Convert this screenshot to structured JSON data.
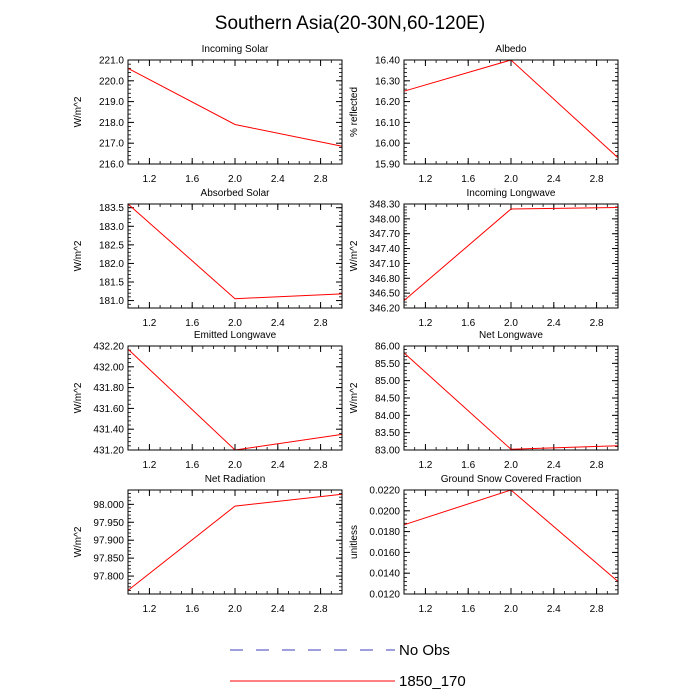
{
  "page": {
    "title": "Southern Asia(20-30N,60-120E)"
  },
  "legend": {
    "entries": [
      {
        "label": "No Obs",
        "color": "#3f3fbf",
        "style": "dashed"
      },
      {
        "label": "1850_170",
        "color": "#ff0000",
        "style": "solid"
      }
    ]
  },
  "chart_data": [
    {
      "type": "line",
      "title": "Incoming Solar",
      "ylabel": "W/m^2",
      "xlim": [
        1.0,
        3.0
      ],
      "ylim": [
        216.0,
        221.0
      ],
      "xticks": [
        "1.2",
        "1.6",
        "2.0",
        "2.4",
        "2.8"
      ],
      "yticks": [
        "216.0",
        "217.0",
        "218.0",
        "219.0",
        "220.0",
        "221.0"
      ],
      "series": [
        {
          "name": "1850_170",
          "color": "#ff0000",
          "x": [
            1,
            2,
            3
          ],
          "y": [
            220.6,
            217.9,
            216.85
          ]
        }
      ]
    },
    {
      "type": "line",
      "title": "Albedo",
      "ylabel": "% reflected",
      "xlim": [
        1.0,
        3.0
      ],
      "ylim": [
        15.9,
        16.4
      ],
      "xticks": [
        "1.2",
        "1.6",
        "2.0",
        "2.4",
        "2.8"
      ],
      "yticks": [
        "15.90",
        "16.00",
        "16.10",
        "16.20",
        "16.30",
        "16.40"
      ],
      "series": [
        {
          "name": "1850_170",
          "color": "#ff0000",
          "x": [
            1,
            2,
            3
          ],
          "y": [
            16.25,
            16.4,
            15.93
          ]
        }
      ]
    },
    {
      "type": "line",
      "title": "Absorbed Solar",
      "ylabel": "W/m^2",
      "xlim": [
        1.0,
        3.0
      ],
      "ylim": [
        180.8,
        183.6
      ],
      "xticks": [
        "1.2",
        "1.6",
        "2.0",
        "2.4",
        "2.8"
      ],
      "yticks": [
        "181.0",
        "181.5",
        "182.0",
        "182.5",
        "183.0",
        "183.5"
      ],
      "series": [
        {
          "name": "1850_170",
          "color": "#ff0000",
          "x": [
            1,
            2,
            3
          ],
          "y": [
            183.6,
            181.05,
            181.18
          ]
        }
      ]
    },
    {
      "type": "line",
      "title": "Incoming Longwave",
      "ylabel": "W/m^2",
      "xlim": [
        1.0,
        3.0
      ],
      "ylim": [
        346.2,
        348.3
      ],
      "xticks": [
        "1.2",
        "1.6",
        "2.0",
        "2.4",
        "2.8"
      ],
      "yticks": [
        "346.20",
        "346.50",
        "346.80",
        "347.10",
        "347.40",
        "347.70",
        "348.00",
        "348.30"
      ],
      "series": [
        {
          "name": "1850_170",
          "color": "#ff0000",
          "x": [
            1,
            2,
            3
          ],
          "y": [
            346.35,
            348.2,
            348.23
          ]
        }
      ]
    },
    {
      "type": "line",
      "title": "Emitted Longwave",
      "ylabel": "W/m^2",
      "xlim": [
        1.0,
        3.0
      ],
      "ylim": [
        431.2,
        432.2
      ],
      "xticks": [
        "1.2",
        "1.6",
        "2.0",
        "2.4",
        "2.8"
      ],
      "yticks": [
        "431.20",
        "431.40",
        "431.60",
        "431.80",
        "432.00",
        "432.20"
      ],
      "series": [
        {
          "name": "1850_170",
          "color": "#ff0000",
          "x": [
            1,
            2,
            3
          ],
          "y": [
            432.17,
            431.2,
            431.35
          ]
        }
      ]
    },
    {
      "type": "line",
      "title": "Net Longwave",
      "ylabel": "W/m^2",
      "xlim": [
        1.0,
        3.0
      ],
      "ylim": [
        83.0,
        86.0
      ],
      "xticks": [
        "1.2",
        "1.6",
        "2.0",
        "2.4",
        "2.8"
      ],
      "yticks": [
        "83.00",
        "83.50",
        "84.00",
        "84.50",
        "85.00",
        "85.50",
        "86.00"
      ],
      "series": [
        {
          "name": "1850_170",
          "color": "#ff0000",
          "x": [
            1,
            2,
            3
          ],
          "y": [
            85.8,
            83.02,
            83.12
          ]
        }
      ]
    },
    {
      "type": "line",
      "title": "Net Radiation",
      "ylabel": "W/m^2",
      "xlim": [
        1.0,
        3.0
      ],
      "ylim": [
        97.75,
        98.04
      ],
      "xticks": [
        "1.2",
        "1.6",
        "2.0",
        "2.4",
        "2.8"
      ],
      "yticks": [
        "97.800",
        "97.850",
        "97.900",
        "97.950",
        "98.000"
      ],
      "series": [
        {
          "name": "1850_170",
          "color": "#ff0000",
          "x": [
            1,
            2,
            3
          ],
          "y": [
            97.76,
            97.995,
            98.028
          ]
        }
      ]
    },
    {
      "type": "line",
      "title": "Ground Snow Covered Fraction",
      "ylabel": "unitless",
      "xlim": [
        1.0,
        3.0
      ],
      "ylim": [
        0.012,
        0.022
      ],
      "xticks": [
        "1.2",
        "1.6",
        "2.0",
        "2.4",
        "2.8"
      ],
      "yticks": [
        "0.0120",
        "0.0140",
        "0.0160",
        "0.0180",
        "0.0200",
        "0.0220"
      ],
      "series": [
        {
          "name": "1850_170",
          "color": "#ff0000",
          "x": [
            1,
            2,
            3
          ],
          "y": [
            0.01865,
            0.022,
            0.0132
          ]
        }
      ]
    }
  ]
}
